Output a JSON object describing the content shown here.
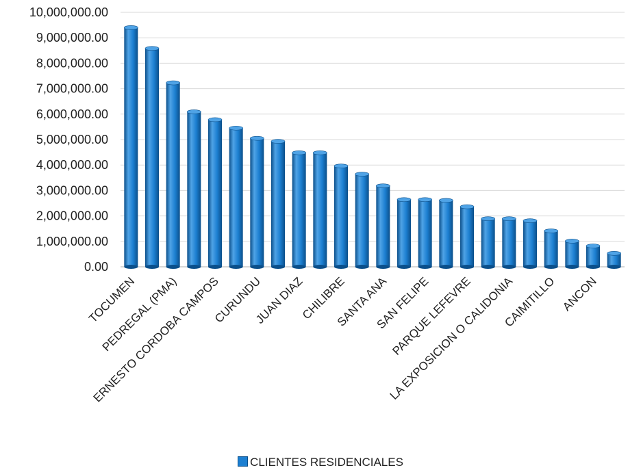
{
  "chart_data": {
    "type": "bar",
    "title": "",
    "xlabel": "",
    "ylabel": "",
    "ylim": [
      0,
      10000000
    ],
    "y_ticks": [
      "0.00",
      "1,000,000.00",
      "2,000,000.00",
      "3,000,000.00",
      "4,000,000.00",
      "5,000,000.00",
      "6,000,000.00",
      "7,000,000.00",
      "8,000,000.00",
      "9,000,000.00",
      "10,000,000.00"
    ],
    "grid": true,
    "legend_position": "bottom",
    "bar_style": "3d-cylinder",
    "colors": {
      "bar": "#1c7fd1",
      "bar_dark": "#0b4f8a",
      "bar_light": "#4fa3e6",
      "grid": "#d9d9d9"
    },
    "categories": [
      "TOCUMEN",
      "",
      "PEDREGAL (PMA)",
      "",
      "ERNESTO CORDOBA CAMPOS",
      "",
      "CURUNDU",
      "",
      "JUAN DIAZ",
      "",
      "CHILIBRE",
      "",
      "SANTA ANA",
      "",
      "SAN FELIPE",
      "",
      "PARQUE LEFEVRE",
      "",
      "LA EXPOSICION O CALIDONIA",
      "",
      "CAIMITILLO",
      "",
      "ANCON",
      ""
    ],
    "series": [
      {
        "name": "CLIENTES RESIDENCIALES",
        "values": [
          9400000,
          8580000,
          7230000,
          6090000,
          5780000,
          5450000,
          5050000,
          4930000,
          4480000,
          4480000,
          3960000,
          3640000,
          3180000,
          2640000,
          2640000,
          2610000,
          2360000,
          1890000,
          1890000,
          1810000,
          1410000,
          1010000,
          820000,
          530000
        ]
      }
    ]
  }
}
